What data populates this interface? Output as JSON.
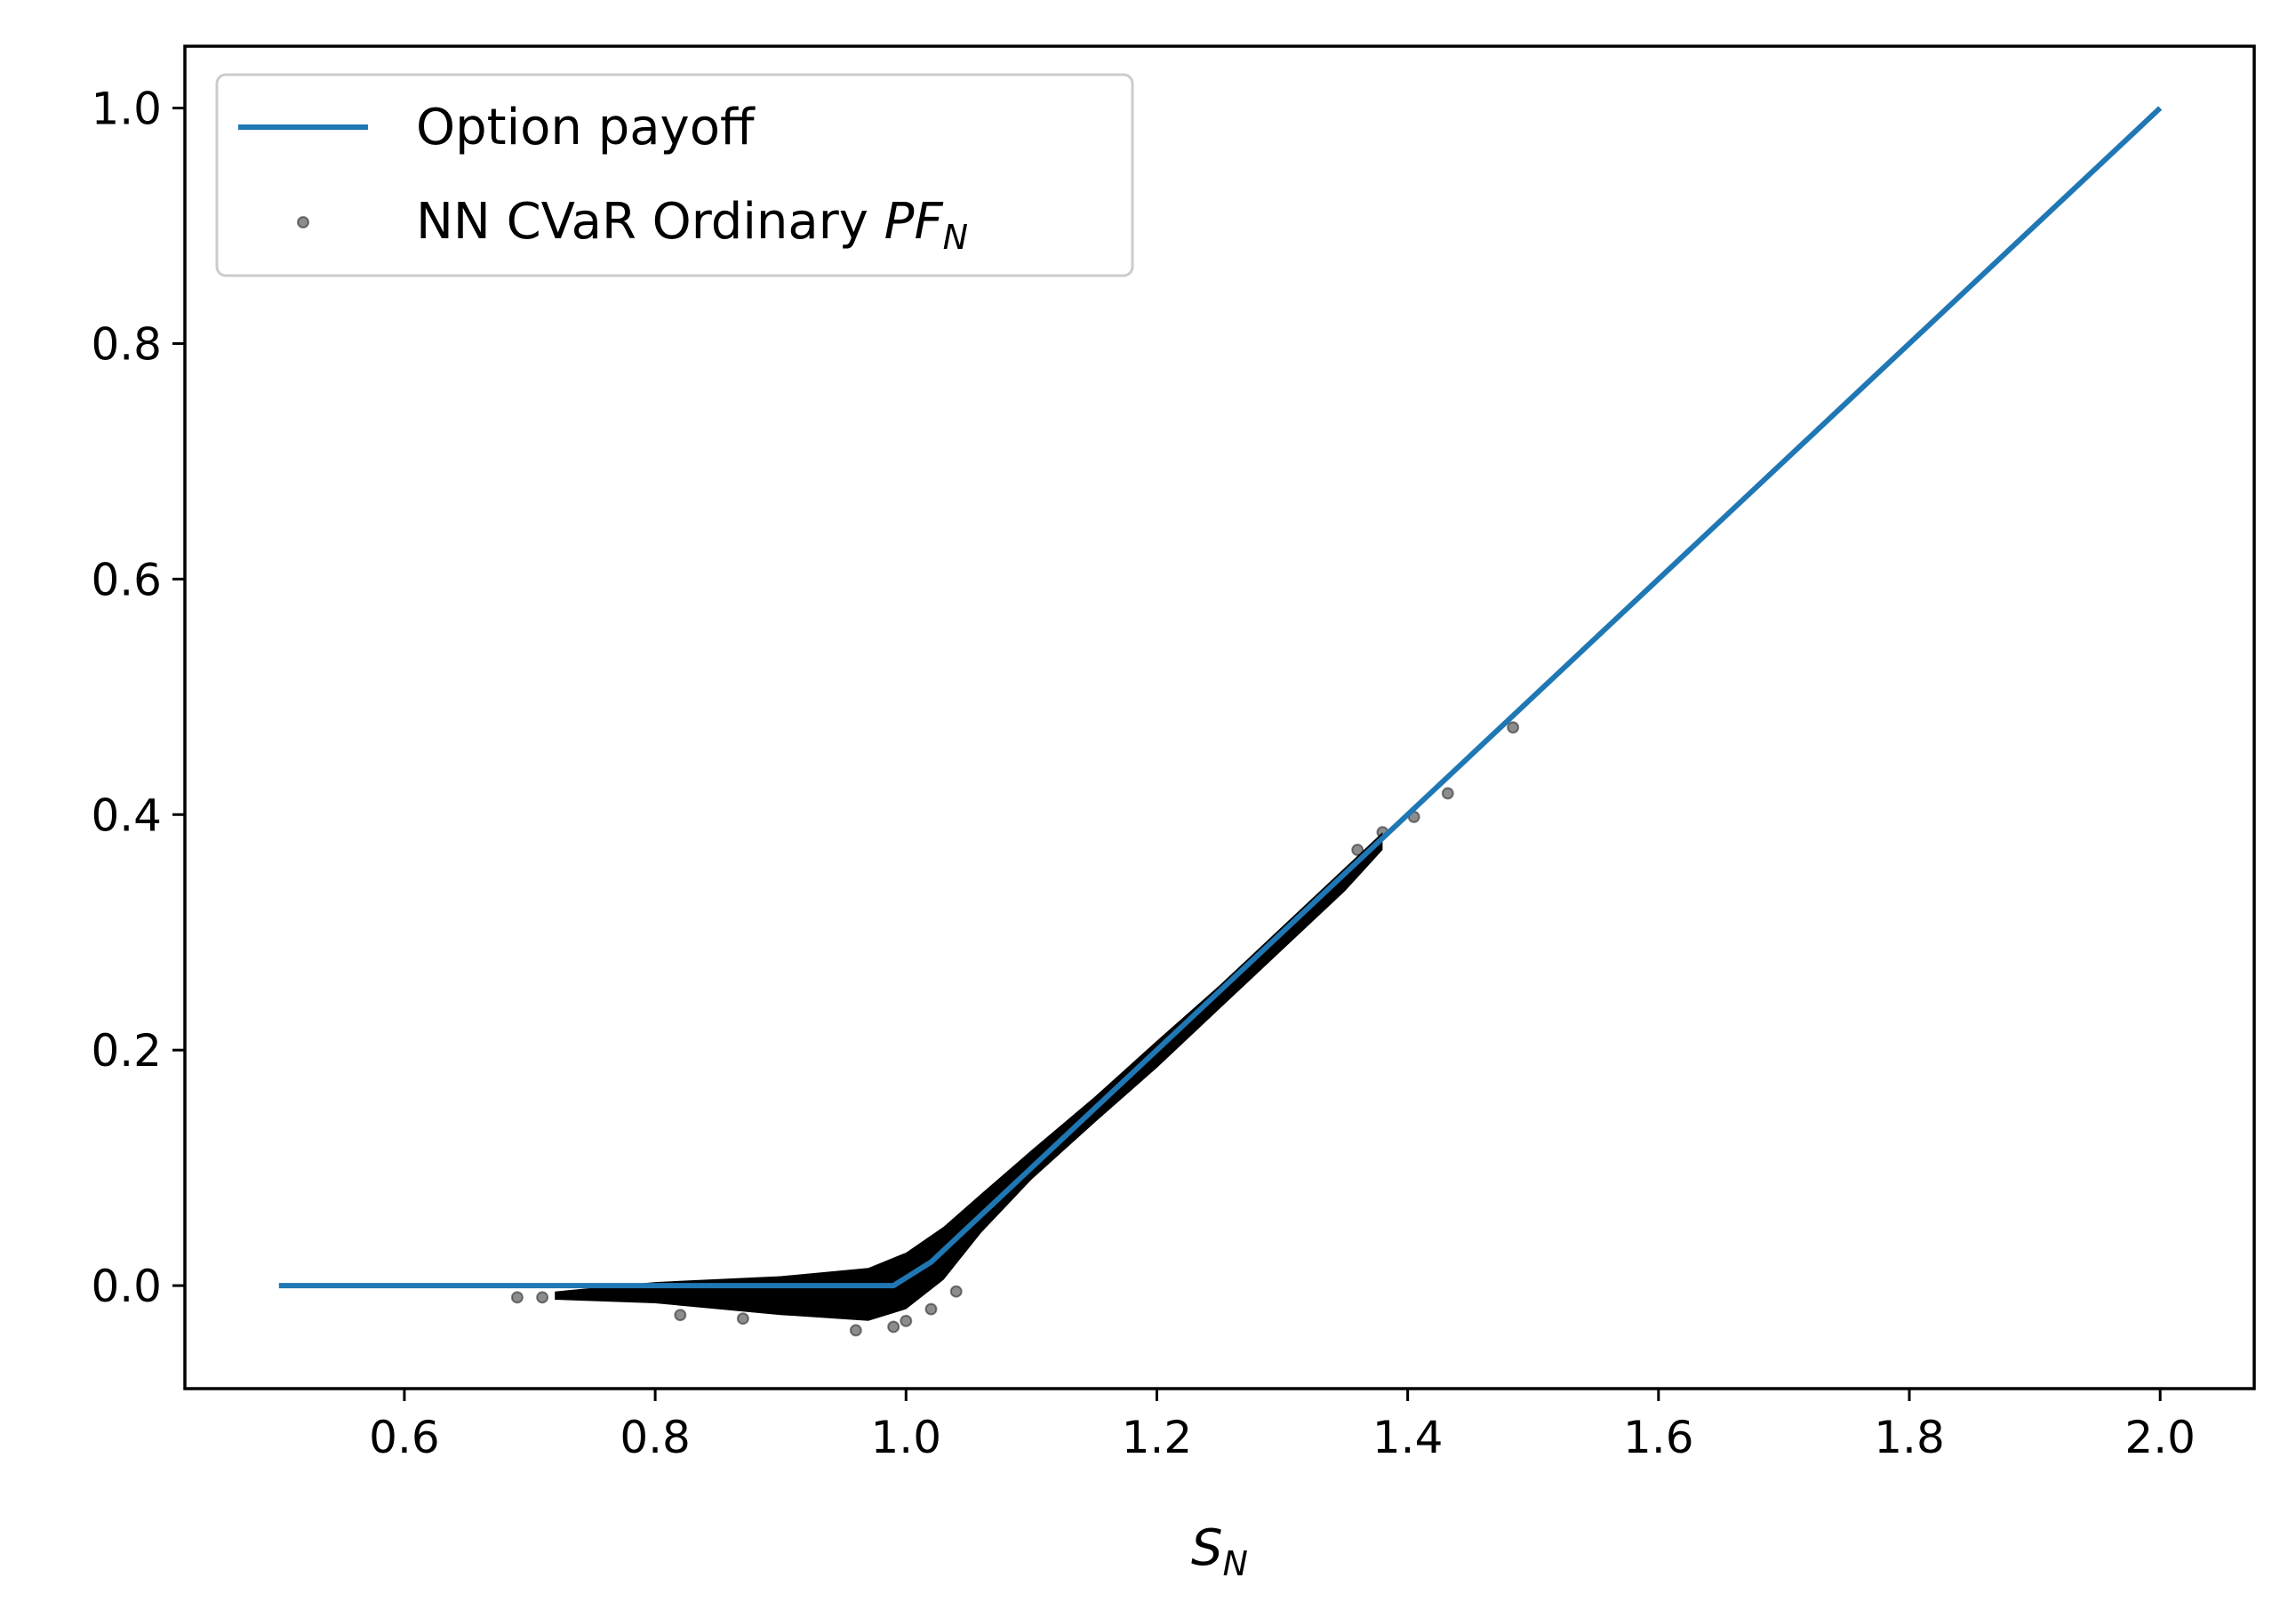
{
  "chart_data": {
    "type": "line",
    "xlabel": "S",
    "xlabel_sub": "N",
    "ylabel": "",
    "xlim": [
      0.425,
      2.075
    ],
    "ylim": [
      -0.0875,
      1.0525
    ],
    "xticks": [
      0.6,
      0.8,
      1.0,
      1.2,
      1.4,
      1.6,
      1.8,
      2.0
    ],
    "xtick_labels": [
      "0.6",
      "0.8",
      "1.0",
      "1.2",
      "1.4",
      "1.6",
      "1.8",
      "2.0"
    ],
    "yticks": [
      0.0,
      0.2,
      0.4,
      0.6,
      0.8,
      1.0
    ],
    "ytick_labels": [
      "0.0",
      "0.2",
      "0.4",
      "0.6",
      "0.8",
      "1.0"
    ],
    "grid": false,
    "legend_placement": "top-left",
    "series": [
      {
        "name": "Option payoff",
        "kind": "line",
        "color": "#1f77b4",
        "x": [
          0.5,
          0.99,
          1.02,
          2.0
        ],
        "y": [
          0.0,
          0.0,
          0.02,
          1.0
        ]
      },
      {
        "name": "NN CVaR Ordinary ",
        "name_math": "PF",
        "name_sub": "N",
        "kind": "scatter",
        "color": "#000000",
        "band": {
          "upper_x": [
            0.72,
            0.8,
            0.9,
            0.97,
            1.0,
            1.03,
            1.06,
            1.1,
            1.15,
            1.2,
            1.25,
            1.3,
            1.35,
            1.38
          ],
          "upper_y": [
            -0.005,
            0.003,
            0.008,
            0.015,
            0.028,
            0.05,
            0.078,
            0.115,
            0.16,
            0.208,
            0.255,
            0.305,
            0.355,
            0.385
          ],
          "lower_x": [
            1.38,
            1.35,
            1.3,
            1.25,
            1.2,
            1.15,
            1.1,
            1.06,
            1.03,
            1.0,
            0.97,
            0.9,
            0.8,
            0.72
          ],
          "lower_y": [
            0.37,
            0.335,
            0.285,
            0.235,
            0.185,
            0.138,
            0.09,
            0.045,
            0.005,
            -0.02,
            -0.03,
            -0.025,
            -0.015,
            -0.012
          ]
        },
        "outliers": [
          [
            0.69,
            -0.01
          ],
          [
            0.71,
            -0.01
          ],
          [
            0.82,
            -0.025
          ],
          [
            0.87,
            -0.028
          ],
          [
            0.96,
            -0.038
          ],
          [
            0.99,
            -0.035
          ],
          [
            1.0,
            -0.03
          ],
          [
            1.02,
            -0.02
          ],
          [
            1.04,
            -0.005
          ],
          [
            1.36,
            0.37
          ],
          [
            1.38,
            0.385
          ],
          [
            1.405,
            0.398
          ],
          [
            1.432,
            0.418
          ],
          [
            1.484,
            0.474
          ]
        ]
      }
    ]
  }
}
